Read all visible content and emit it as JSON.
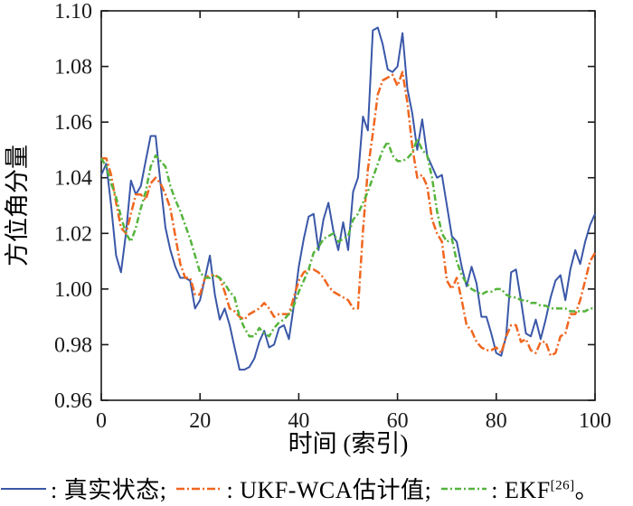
{
  "chart_data": {
    "type": "line",
    "title": "",
    "xlabel": "时间 (索引)",
    "ylabel": "方位角分量",
    "xlim": [
      0,
      100
    ],
    "ylim": [
      0.96,
      1.1
    ],
    "xticks": [
      0,
      20,
      40,
      60,
      80,
      100
    ],
    "xtick_labels": [
      "0",
      "20",
      "40",
      "60",
      "80",
      "100"
    ],
    "yticks": [
      0.96,
      0.98,
      1.0,
      1.02,
      1.04,
      1.06,
      1.08,
      1.1
    ],
    "ytick_labels": [
      "0.96",
      "0.98",
      "1.00",
      "1.02",
      "1.04",
      "1.06",
      "1.08",
      "1.10"
    ],
    "grid": false,
    "legend_position": "bottom-outside",
    "x_values": [
      0,
      1,
      2,
      3,
      4,
      5,
      6,
      7,
      8,
      9,
      10,
      11,
      12,
      13,
      14,
      15,
      16,
      17,
      18,
      19,
      20,
      21,
      22,
      23,
      24,
      25,
      26,
      27,
      28,
      29,
      30,
      31,
      32,
      33,
      34,
      35,
      36,
      37,
      38,
      39,
      40,
      41,
      42,
      43,
      44,
      45,
      46,
      47,
      48,
      49,
      50,
      51,
      52,
      53,
      54,
      55,
      56,
      57,
      58,
      59,
      60,
      61,
      62,
      63,
      64,
      65,
      66,
      67,
      68,
      69,
      70,
      71,
      72,
      73,
      74,
      75,
      76,
      77,
      78,
      79,
      80,
      81,
      82,
      83,
      84,
      85,
      86,
      87,
      88,
      89,
      90,
      91,
      92,
      93,
      94,
      95,
      96,
      97,
      98,
      99,
      100
    ],
    "series": [
      {
        "id": "true-state",
        "name": "真实状态",
        "color": "#3A57A8",
        "style": "solid",
        "dash": "",
        "width": 2,
        "values": [
          1.041,
          1.045,
          1.03,
          1.012,
          1.006,
          1.02,
          1.039,
          1.034,
          1.037,
          1.046,
          1.055,
          1.055,
          1.038,
          1.022,
          1.014,
          1.008,
          1.004,
          1.004,
          1.003,
          0.993,
          0.996,
          1.004,
          1.012,
          0.998,
          0.989,
          0.993,
          0.987,
          0.979,
          0.971,
          0.971,
          0.972,
          0.975,
          0.981,
          0.985,
          0.979,
          0.98,
          0.986,
          0.987,
          0.982,
          0.994,
          1.008,
          1.018,
          1.026,
          1.027,
          1.014,
          1.025,
          1.031,
          1.021,
          1.014,
          1.024,
          1.014,
          1.035,
          1.04,
          1.062,
          1.057,
          1.093,
          1.094,
          1.088,
          1.079,
          1.078,
          1.08,
          1.092,
          1.072,
          1.063,
          1.05,
          1.061,
          1.048,
          1.044,
          1.04,
          1.041,
          1.03,
          1.019,
          1.017,
          1.008,
          1.001,
          1.008,
          1.002,
          0.99,
          0.99,
          0.984,
          0.977,
          0.976,
          0.983,
          1.006,
          1.007,
          0.996,
          0.984,
          0.983,
          0.989,
          0.982,
          0.989,
          0.997,
          1.003,
          1.005,
          0.996,
          1.007,
          1.014,
          1.009,
          1.017,
          1.023,
          1.027
        ]
      },
      {
        "id": "ukf-wca",
        "name": "UKF-WCA估计值",
        "color": "#F0661F",
        "style": "dash-dot",
        "dash": "9 3 2 3",
        "width": 2.5,
        "values": [
          1.047,
          1.047,
          1.041,
          1.031,
          1.022,
          1.02,
          1.027,
          1.034,
          1.034,
          1.032,
          1.038,
          1.04,
          1.038,
          1.034,
          1.029,
          1.019,
          1.009,
          1.004,
          1.004,
          0.998,
          0.998,
          1.004,
          1.005,
          1.005,
          1.004,
          0.999,
          0.993,
          0.992,
          0.99,
          0.989,
          0.991,
          0.992,
          0.993,
          0.995,
          0.993,
          0.99,
          0.991,
          0.991,
          0.991,
          0.997,
          1.003,
          1.006,
          1.007,
          1.007,
          1.006,
          1.004,
          1.001,
          0.999,
          0.998,
          0.997,
          0.996,
          0.993,
          0.993,
          1.021,
          1.043,
          1.056,
          1.07,
          1.075,
          1.076,
          1.077,
          1.073,
          1.078,
          1.067,
          1.051,
          1.04,
          1.041,
          1.037,
          1.025,
          1.02,
          1.017,
          1.003,
          1.0,
          1.004,
          0.996,
          0.987,
          0.985,
          0.981,
          0.979,
          0.978,
          0.978,
          0.979,
          0.977,
          0.983,
          0.987,
          0.987,
          0.981,
          0.982,
          0.978,
          0.977,
          0.981,
          0.981,
          0.976,
          0.977,
          0.983,
          0.984,
          0.991,
          0.991,
          0.996,
          1.003,
          1.01,
          1.013
        ]
      },
      {
        "id": "ekf",
        "name": "EKF[26]",
        "color": "#55B43C",
        "style": "dash-dot",
        "dash": "7 3 2 3",
        "width": 2.5,
        "values": [
          1.047,
          1.044,
          1.038,
          1.033,
          1.026,
          1.02,
          1.017,
          1.022,
          1.029,
          1.035,
          1.044,
          1.048,
          1.046,
          1.044,
          1.037,
          1.032,
          1.028,
          1.023,
          1.018,
          1.012,
          1.006,
          1.004,
          1.004,
          1.005,
          1.004,
          1.002,
          0.999,
          0.997,
          0.99,
          0.986,
          0.983,
          0.983,
          0.986,
          0.984,
          0.983,
          0.986,
          0.988,
          0.989,
          0.991,
          0.994,
          0.999,
          1.003,
          1.007,
          1.013,
          1.015,
          1.018,
          1.019,
          1.02,
          1.017,
          1.018,
          1.019,
          1.025,
          1.027,
          1.031,
          1.035,
          1.04,
          1.045,
          1.05,
          1.053,
          1.048,
          1.046,
          1.046,
          1.047,
          1.049,
          1.054,
          1.05,
          1.048,
          1.04,
          1.028,
          1.02,
          1.017,
          1.018,
          1.01,
          1.005,
          1.002,
          1.0,
          0.999,
          0.998,
          0.999,
          0.999,
          1.0,
          1.0,
          0.998,
          0.997,
          0.997,
          0.996,
          0.996,
          0.995,
          0.995,
          0.994,
          0.994,
          0.993,
          0.993,
          0.993,
          0.993,
          0.992,
          0.992,
          0.992,
          0.992,
          0.993,
          0.993
        ]
      }
    ]
  },
  "legend": {
    "items": [
      {
        "prefix": ": ",
        "label": "真实状态",
        "suffix": ";"
      },
      {
        "prefix": ": ",
        "label": "UKF-WCA估计值",
        "suffix": ";"
      },
      {
        "prefix": ": ",
        "label": "EKF",
        "sup": "[26]",
        "suffix": "。"
      }
    ]
  }
}
